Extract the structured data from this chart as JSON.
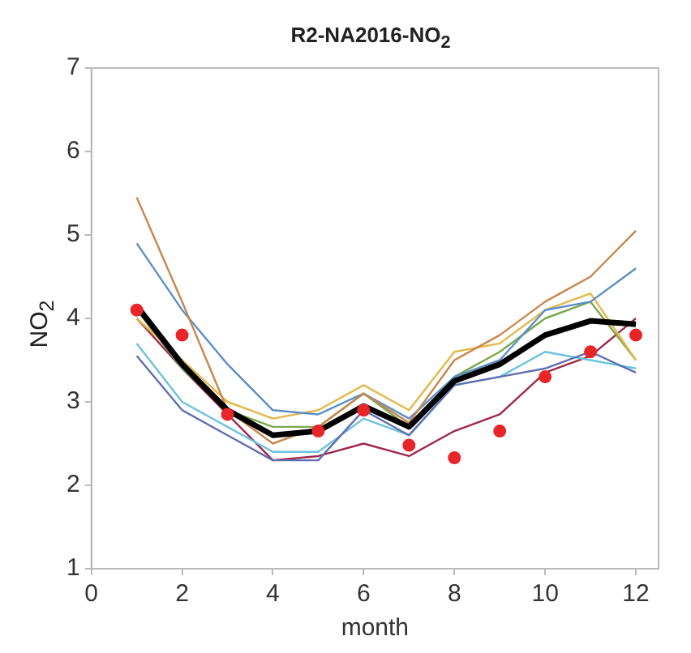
{
  "chart_data": {
    "type": "line",
    "title": "R2-NA2016-NO$_{2}$",
    "xlabel": "month",
    "ylabel": "NO$_{2}$",
    "x": [
      1,
      2,
      3,
      4,
      5,
      6,
      7,
      8,
      9,
      10,
      11,
      12
    ],
    "xlim": [
      0,
      12.5
    ],
    "xticks": [
      0,
      2,
      4,
      6,
      8,
      10,
      12
    ],
    "ylim": [
      1,
      7
    ],
    "yticks": [
      1,
      2,
      3,
      4,
      5,
      6,
      7
    ],
    "grid": false,
    "legend": false,
    "line_style": "solid",
    "series": [
      {
        "color": "#c8864a",
        "values": [
          5.45,
          4.2,
          2.9,
          2.5,
          2.7,
          3.1,
          2.75,
          3.5,
          3.8,
          4.2,
          4.5,
          5.05
        ]
      },
      {
        "color": "#5b8fc9",
        "values": [
          4.9,
          4.1,
          3.45,
          2.9,
          2.85,
          3.1,
          2.8,
          3.3,
          3.5,
          4.1,
          4.2,
          4.6
        ]
      },
      {
        "color": "#e5b84a",
        "values": [
          4.0,
          3.5,
          3.0,
          2.8,
          2.9,
          3.2,
          2.9,
          3.6,
          3.7,
          4.1,
          4.3,
          3.5
        ]
      },
      {
        "color": "#7aa84c",
        "values": [
          4.1,
          3.4,
          2.9,
          2.7,
          2.7,
          3.1,
          2.7,
          3.3,
          3.6,
          4.0,
          4.2,
          3.5
        ]
      },
      {
        "color": "#5f6fb0",
        "values": [
          3.55,
          2.9,
          2.6,
          2.3,
          2.3,
          2.9,
          2.6,
          3.2,
          3.3,
          3.4,
          3.6,
          3.35
        ]
      },
      {
        "color": "#6cc3dd",
        "values": [
          3.7,
          3.0,
          2.7,
          2.4,
          2.4,
          2.8,
          2.6,
          3.2,
          3.3,
          3.6,
          3.5,
          3.4
        ]
      },
      {
        "color": "#a0284a",
        "values": [
          4.0,
          3.4,
          2.85,
          2.3,
          2.35,
          2.5,
          2.35,
          2.65,
          2.85,
          3.35,
          3.55,
          4.0
        ]
      },
      {
        "color": "#000000",
        "values": [
          4.15,
          3.45,
          2.9,
          2.6,
          2.65,
          2.95,
          2.7,
          3.25,
          3.45,
          3.8,
          3.97,
          3.93
        ]
      },
      {
        "type": "scatter",
        "marker": "circle",
        "color": "#e8262a",
        "values": [
          4.1,
          3.8,
          2.85,
          null,
          2.65,
          2.9,
          2.48,
          2.33,
          2.65,
          3.3,
          3.6,
          3.8
        ]
      }
    ]
  }
}
